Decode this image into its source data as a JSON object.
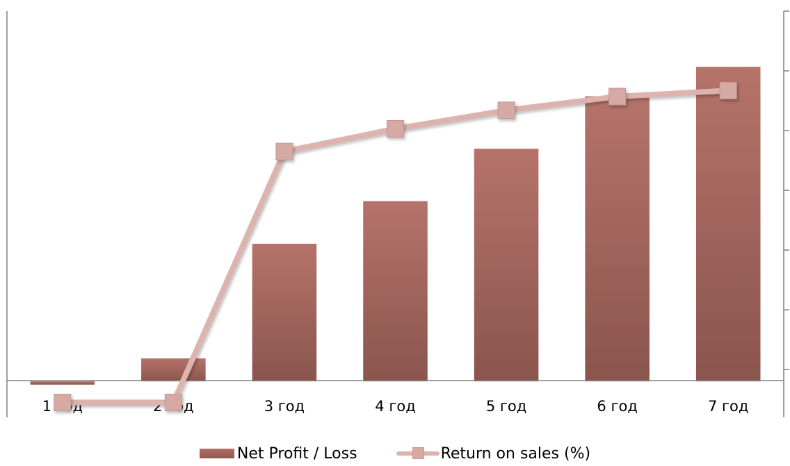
{
  "chart_data": {
    "type": "bar",
    "categories": [
      "1 год",
      "2 год",
      "3 год",
      "4 год",
      "5 год",
      "6 год",
      "7 год"
    ],
    "series": [
      {
        "name": "Net Profit / Loss",
        "kind": "bar",
        "axis": "left",
        "values": [
          -0.1,
          0.7,
          4.2,
          5.5,
          7.1,
          8.7,
          9.6
        ]
      },
      {
        "name": "Return on sales (%)",
        "kind": "line",
        "axis": "right",
        "values": [
          -5.5,
          -5.5,
          36.5,
          40.3,
          43.4,
          45.7,
          46.7
        ]
      }
    ],
    "ylim_left": [
      -1.1,
      11.3
    ],
    "ylim_right": [
      -8,
      60
    ],
    "grid": false,
    "legend": "bottom",
    "colors": {
      "bar_top": "#b5736a",
      "bar_bottom": "#8a554d",
      "line": "#dcb3ae",
      "marker": "#d6aaa4"
    }
  }
}
